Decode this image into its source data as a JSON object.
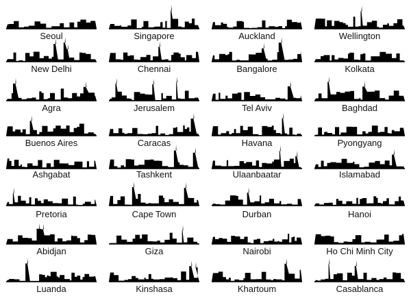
{
  "rows": [
    [
      "Seoul",
      "Singapore",
      "Auckland",
      "Wellington"
    ],
    [
      "New Delhi",
      "Chennai",
      "Bangalore",
      "Kolkata"
    ],
    [
      "Agra",
      "Jerusalem",
      "Tel Aviv",
      "Baghdad"
    ],
    [
      "Buenos Aires",
      "Caracas",
      "Havana",
      "Pyongyang"
    ],
    [
      "Ashgabat",
      "Tashkent",
      "Ulaanbaatar",
      "Islamabad"
    ],
    [
      "Pretoria",
      "Cape Town",
      "Durban",
      "Hanoi"
    ],
    [
      "Abidjan",
      "Giza",
      "Nairobi",
      "Ho Chi Minh City"
    ],
    [
      "Luanda",
      "Kinshasa",
      "Khartoum",
      "Casablanca"
    ]
  ]
}
